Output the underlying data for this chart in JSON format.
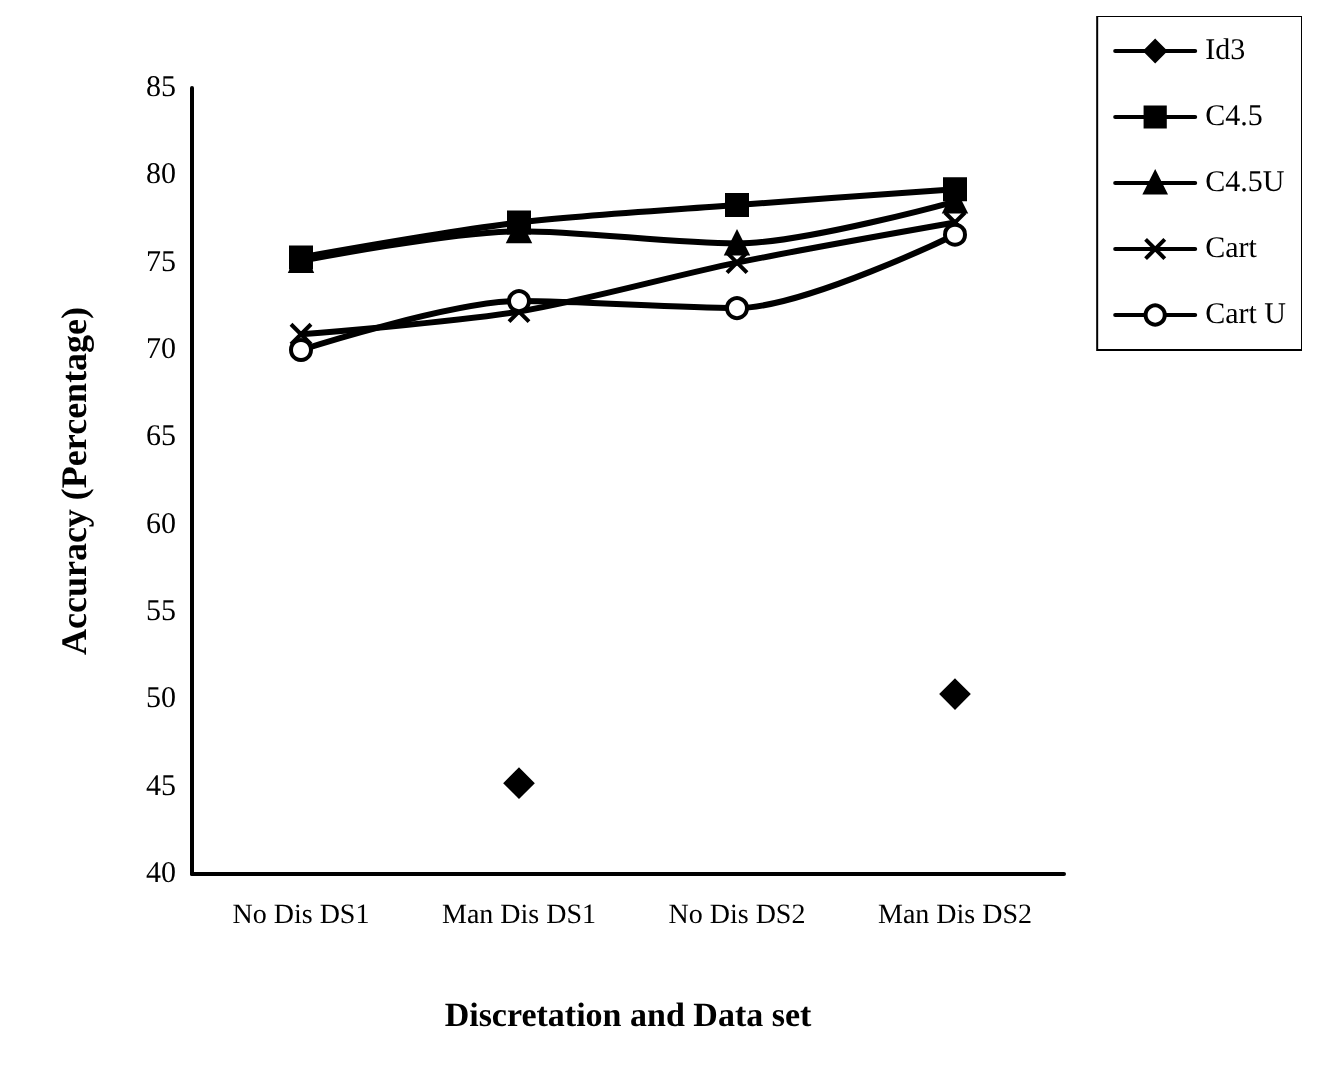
{
  "chart_data": {
    "type": "line",
    "xlabel": "Discretation and Data set",
    "ylabel": "Accuracy (Percentage)",
    "categories": [
      "No Dis DS1",
      "Man Dis DS1",
      "No Dis DS2",
      "Man Dis DS2"
    ],
    "ylim": [
      40,
      85
    ],
    "yticks": [
      40,
      45,
      50,
      55,
      60,
      65,
      70,
      75,
      80,
      85
    ],
    "grid": false,
    "legend": "top right",
    "series": [
      {
        "name": "Id3",
        "color": "#000000",
        "marker": "diamond",
        "values": [
          null,
          45.2,
          null,
          50.3
        ]
      },
      {
        "name": "C4.5",
        "color": "#000000",
        "marker": "square",
        "values": [
          75.3,
          77.3,
          78.3,
          79.2
        ]
      },
      {
        "name": "C4.5U",
        "color": "#000000",
        "marker": "triangle",
        "values": [
          75.1,
          76.8,
          76.1,
          78.5
        ]
      },
      {
        "name": "Cart",
        "color": "#000000",
        "marker": "cross",
        "values": [
          70.9,
          72.2,
          75.0,
          77.3
        ]
      },
      {
        "name": "Cart U",
        "color": "#000000",
        "marker": "circle",
        "values": [
          70.0,
          72.8,
          72.4,
          76.6
        ]
      }
    ]
  }
}
